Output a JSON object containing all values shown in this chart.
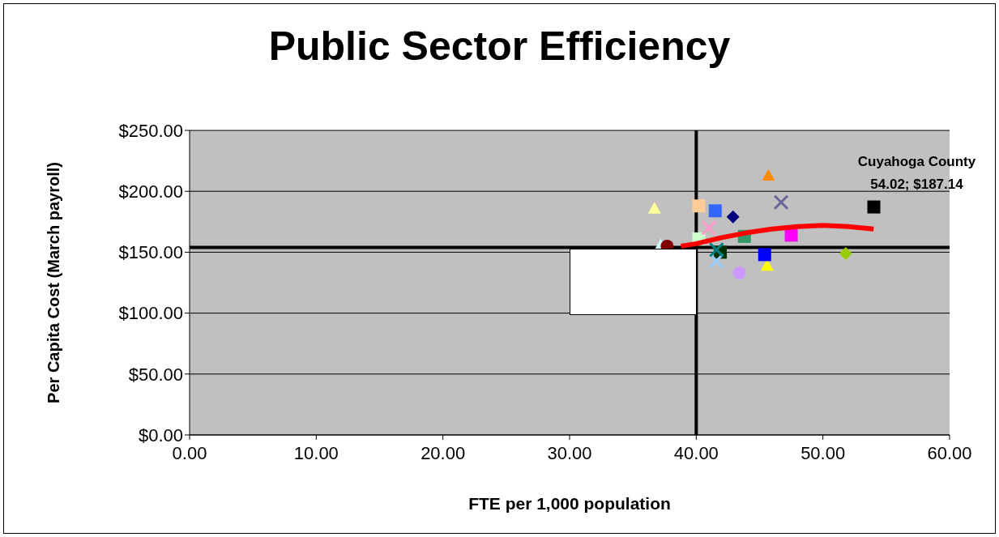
{
  "chart_data": {
    "type": "scatter",
    "title": "Public Sector Efficiency",
    "xlabel": "FTE per 1,000 population",
    "ylabel": "Per Capita Cost (March payroll)",
    "xlim": [
      0,
      60
    ],
    "xticks": [
      {
        "value": 0,
        "label": "0.00"
      },
      {
        "value": 10,
        "label": "10.00"
      },
      {
        "value": 20,
        "label": "20.00"
      },
      {
        "value": 30,
        "label": "30.00"
      },
      {
        "value": 40,
        "label": "40.00"
      },
      {
        "value": 50,
        "label": "50.00"
      },
      {
        "value": 60,
        "label": "60.00"
      }
    ],
    "ylim": [
      0,
      250
    ],
    "yticks": [
      {
        "value": 0,
        "label": "$0.00"
      },
      {
        "value": 50,
        "label": "$50.00"
      },
      {
        "value": 100,
        "label": "$100.00"
      },
      {
        "value": 150,
        "label": "$150.00"
      },
      {
        "value": 200,
        "label": "$200.00"
      },
      {
        "value": 250,
        "label": "$250.00"
      }
    ],
    "grid": "y",
    "series": [
      {
        "type": "scatter",
        "marker": "triangle",
        "x": [
          36.7,
          45.7,
          45.6,
          37.2
        ],
        "values": [
          186,
          213,
          139,
          156
        ],
        "colors": [
          "#ffff99",
          "#ff8c00",
          "#ffff00",
          "#ccffff"
        ]
      },
      {
        "type": "scatter",
        "marker": "square",
        "x": [
          54.02,
          47.5,
          43.8,
          40.2,
          41.9,
          41.5,
          40.2,
          45.4
        ],
        "values": [
          187.14,
          164,
          163,
          161,
          150,
          184,
          188,
          148
        ],
        "colors": [
          "#000000",
          "#ff00ff",
          "#339966",
          "#ccffcc",
          "#003300",
          "#3366ff",
          "#ffcc99",
          "#0000ff"
        ]
      },
      {
        "type": "scatter",
        "marker": "diamond",
        "x": [
          42.9,
          51.8
        ],
        "values": [
          179,
          149
        ],
        "colors": [
          "#000080",
          "#99cc00"
        ]
      },
      {
        "type": "scatter",
        "marker": "cross",
        "x": [
          46.7,
          41.0,
          41.6,
          41.6
        ],
        "values": [
          191,
          170,
          143,
          152
        ],
        "colors": [
          "#666699",
          "#ff99cc",
          "#99ccff",
          "#008080"
        ]
      },
      {
        "type": "scatter",
        "marker": "circle",
        "x": [
          43.4,
          37.7
        ],
        "values": [
          133,
          155
        ],
        "colors": [
          "#cc99ff",
          "#800000"
        ]
      },
      {
        "type": "line",
        "color": "#ff0000",
        "x": [
          38.8,
          40,
          42,
          44,
          46,
          48,
          50,
          52,
          54
        ],
        "values": [
          155,
          157,
          162,
          166,
          169,
          171,
          172,
          171,
          169
        ]
      }
    ],
    "ref_lines": [
      {
        "axis": "x",
        "value": 40,
        "color": "#000000"
      },
      {
        "axis": "y",
        "value": 154,
        "color": "#000000"
      }
    ],
    "annotations": [
      {
        "text": "Cuyahoga County\n54.02; $187.14",
        "x": 54.02,
        "y": 187.14
      }
    ]
  }
}
